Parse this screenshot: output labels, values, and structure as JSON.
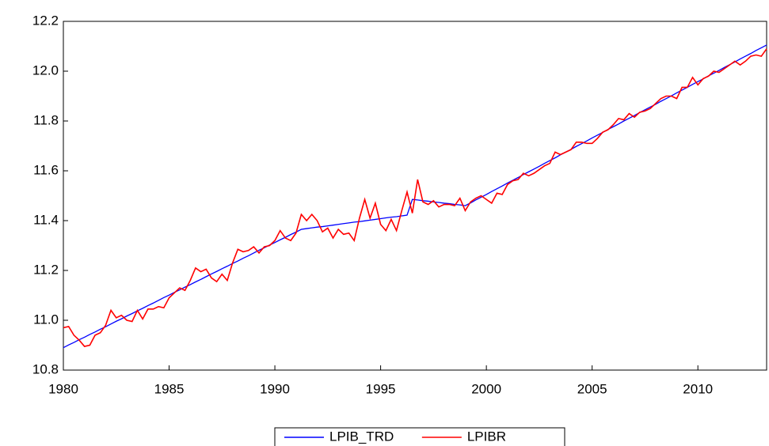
{
  "chart_data": {
    "type": "line",
    "x": [
      1980,
      1980.25,
      1980.5,
      1980.75,
      1981,
      1981.25,
      1981.5,
      1981.75,
      1982,
      1982.25,
      1982.5,
      1982.75,
      1983,
      1983.25,
      1983.5,
      1983.75,
      1984,
      1984.25,
      1984.5,
      1984.75,
      1985,
      1985.25,
      1985.5,
      1985.75,
      1986,
      1986.25,
      1986.5,
      1986.75,
      1987,
      1987.25,
      1987.5,
      1987.75,
      1988,
      1988.25,
      1988.5,
      1988.75,
      1989,
      1989.25,
      1989.5,
      1989.75,
      1990,
      1990.25,
      1990.5,
      1990.75,
      1991,
      1991.25,
      1991.5,
      1991.75,
      1992,
      1992.25,
      1992.5,
      1992.75,
      1993,
      1993.25,
      1993.5,
      1993.75,
      1994,
      1994.25,
      1994.5,
      1994.75,
      1995,
      1995.25,
      1995.5,
      1995.75,
      1996,
      1996.25,
      1996.5,
      1996.75,
      1997,
      1997.25,
      1997.5,
      1997.75,
      1998,
      1998.25,
      1998.5,
      1998.75,
      1999,
      1999.25,
      1999.5,
      1999.75,
      2000,
      2000.25,
      2000.5,
      2000.75,
      2001,
      2001.25,
      2001.5,
      2001.75,
      2002,
      2002.25,
      2002.5,
      2002.75,
      2003,
      2003.25,
      2003.5,
      2003.75,
      2004,
      2004.25,
      2004.5,
      2004.75,
      2005,
      2005.25,
      2005.5,
      2005.75,
      2006,
      2006.25,
      2006.5,
      2006.75,
      2007,
      2007.25,
      2007.5,
      2007.75,
      2008,
      2008.25,
      2008.5,
      2008.75,
      2009,
      2009.25,
      2009.5,
      2009.75,
      2010,
      2010.25,
      2010.5,
      2010.75,
      2011,
      2011.25,
      2011.5,
      2011.75,
      2012,
      2012.25,
      2012.5,
      2012.75,
      2013,
      2013.25
    ],
    "series": [
      {
        "name": "LPIB_TRD",
        "color": "#0000ff",
        "values": [
          10.89,
          10.901,
          10.911,
          10.922,
          10.932,
          10.943,
          10.953,
          10.964,
          10.974,
          10.985,
          10.996,
          11.006,
          11.017,
          11.027,
          11.038,
          11.048,
          11.059,
          11.069,
          11.08,
          11.091,
          11.101,
          11.112,
          11.122,
          11.133,
          11.143,
          11.154,
          11.164,
          11.175,
          11.186,
          11.196,
          11.207,
          11.217,
          11.228,
          11.238,
          11.249,
          11.259,
          11.27,
          11.281,
          11.291,
          11.302,
          11.312,
          11.323,
          11.333,
          11.344,
          11.354,
          11.365,
          11.368,
          11.371,
          11.374,
          11.376,
          11.379,
          11.382,
          11.385,
          11.388,
          11.391,
          11.394,
          11.396,
          11.399,
          11.402,
          11.405,
          11.408,
          11.411,
          11.414,
          11.416,
          11.419,
          11.422,
          11.485,
          11.483,
          11.48,
          11.478,
          11.475,
          11.473,
          11.47,
          11.468,
          11.465,
          11.463,
          11.46,
          11.471,
          11.483,
          11.494,
          11.505,
          11.517,
          11.528,
          11.539,
          11.551,
          11.562,
          11.573,
          11.585,
          11.596,
          11.607,
          11.618,
          11.63,
          11.641,
          11.652,
          11.664,
          11.675,
          11.686,
          11.698,
          11.709,
          11.72,
          11.732,
          11.743,
          11.754,
          11.766,
          11.777,
          11.788,
          11.8,
          11.811,
          11.822,
          11.834,
          11.845,
          11.856,
          11.867,
          11.879,
          11.89,
          11.901,
          11.913,
          11.924,
          11.935,
          11.947,
          11.958,
          11.969,
          11.981,
          11.992,
          12.003,
          12.015,
          12.026,
          12.037,
          12.049,
          12.06,
          12.071,
          12.083,
          12.094,
          12.105
        ]
      },
      {
        "name": "LPIBR",
        "color": "#ff0000",
        "values": [
          10.97,
          10.975,
          10.94,
          10.92,
          10.895,
          10.9,
          10.94,
          10.95,
          10.98,
          11.04,
          11.01,
          11.02,
          11.0,
          10.995,
          11.04,
          11.005,
          11.045,
          11.045,
          11.055,
          11.05,
          11.09,
          11.11,
          11.13,
          11.12,
          11.16,
          11.21,
          11.195,
          11.205,
          11.17,
          11.155,
          11.185,
          11.16,
          11.23,
          11.285,
          11.275,
          11.28,
          11.295,
          11.27,
          11.295,
          11.3,
          11.32,
          11.36,
          11.33,
          11.32,
          11.35,
          11.425,
          11.4,
          11.425,
          11.4,
          11.355,
          11.37,
          11.33,
          11.365,
          11.345,
          11.35,
          11.32,
          11.41,
          11.485,
          11.41,
          11.47,
          11.385,
          11.36,
          11.405,
          11.36,
          11.44,
          11.515,
          11.43,
          11.565,
          11.475,
          11.465,
          11.48,
          11.455,
          11.465,
          11.465,
          11.46,
          11.49,
          11.44,
          11.475,
          11.49,
          11.5,
          11.485,
          11.47,
          11.51,
          11.505,
          11.545,
          11.56,
          11.565,
          11.59,
          11.58,
          11.59,
          11.605,
          11.62,
          11.63,
          11.675,
          11.665,
          11.675,
          11.685,
          11.715,
          11.715,
          11.71,
          11.71,
          11.73,
          11.755,
          11.765,
          11.785,
          11.81,
          11.805,
          11.83,
          11.815,
          11.835,
          11.84,
          11.85,
          11.87,
          11.89,
          11.9,
          11.9,
          11.89,
          11.935,
          11.935,
          11.975,
          11.945,
          11.97,
          11.98,
          12.0,
          11.995,
          12.01,
          12.025,
          12.04,
          12.025,
          12.04,
          12.06,
          12.065,
          12.06,
          12.09
        ]
      }
    ],
    "xlim": [
      1980,
      2013.25
    ],
    "xticks": [
      1980,
      1985,
      1990,
      1995,
      2000,
      2005,
      2010
    ],
    "ylim": [
      10.8,
      12.2
    ],
    "yticks": [
      10.8,
      {
        "value": 11,
        "label": "11.0"
      },
      11.2,
      11.4,
      11.6,
      11.8,
      {
        "value": 12,
        "label": "12.0"
      },
      12.2
    ],
    "legend": "bottom"
  }
}
